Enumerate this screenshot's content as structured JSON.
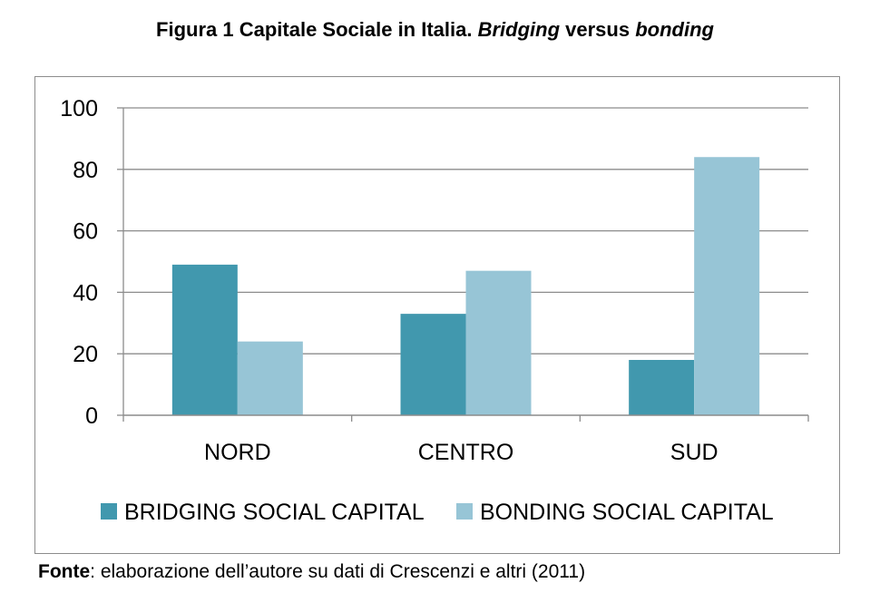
{
  "figure": {
    "title_prefix": "Figura 1 Capitale Sociale in Italia. ",
    "title_italic_1": "Bridging",
    "title_mid": " versus ",
    "title_italic_2": "bonding",
    "source_label": "Fonte",
    "source_text": ": elaborazione dell’autore su dati di Crescenzi e altri (2011)"
  },
  "chart_data": {
    "type": "bar",
    "title": "",
    "xlabel": "",
    "ylabel": "",
    "categories": [
      "NORD",
      "CENTRO",
      "SUD"
    ],
    "series": [
      {
        "name": "BRIDGING SOCIAL CAPITAL",
        "values": [
          49,
          33,
          18
        ],
        "color": "#4198ae"
      },
      {
        "name": "BONDING SOCIAL CAPITAL",
        "values": [
          24,
          47,
          84
        ],
        "color": "#97c5d6"
      }
    ],
    "ylim": [
      0,
      100
    ],
    "yticks": [
      0,
      20,
      40,
      60,
      80,
      100
    ],
    "grid": true,
    "legend_position": "bottom"
  }
}
